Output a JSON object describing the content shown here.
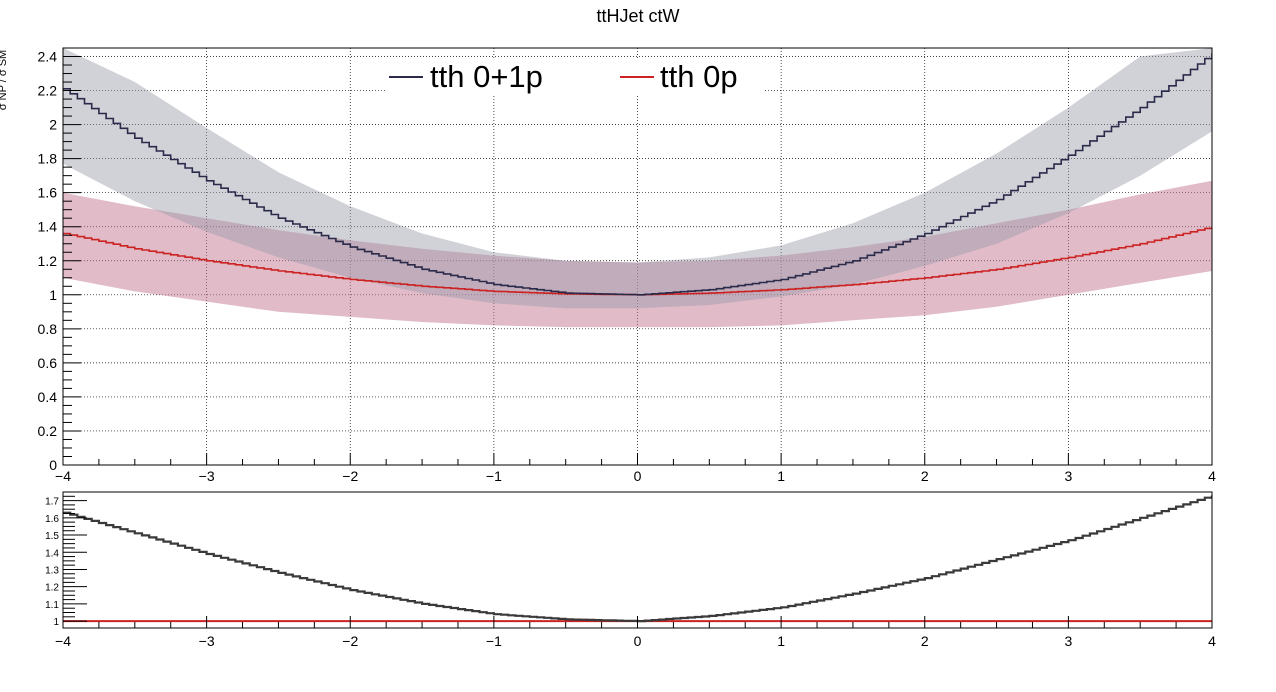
{
  "chart_data": [
    {
      "type": "line",
      "panel": "main",
      "title": "ttHJet ctW",
      "ylabel": "σ NP / σ SM",
      "xlabel": "",
      "xlim": [
        -4,
        4
      ],
      "ylim": [
        0,
        2.45
      ],
      "grid": true,
      "legend_placement": "top-center",
      "x_ticks": [
        "−4",
        "−3",
        "−2",
        "−1",
        "0",
        "1",
        "2",
        "3",
        "4"
      ],
      "y_ticks": [
        "0",
        "0.2",
        "0.4",
        "0.6",
        "0.8",
        "1",
        "1.2",
        "1.4",
        "1.6",
        "1.8",
        "2",
        "2.2",
        "2.4"
      ],
      "series": [
        {
          "name": "tth 0+1p",
          "color": "#2a2a4a",
          "band_color": "#9a9aa8",
          "x": [
            -4,
            -3.5,
            -3,
            -2.5,
            -2,
            -1.5,
            -1,
            -0.5,
            0,
            0.5,
            1,
            1.5,
            2,
            2.5,
            3,
            3.5,
            4
          ],
          "values": [
            2.21,
            1.92,
            1.67,
            1.45,
            1.28,
            1.15,
            1.06,
            1.01,
            1.0,
            1.03,
            1.09,
            1.2,
            1.36,
            1.56,
            1.82,
            2.1,
            2.42
          ],
          "band_low": [
            1.77,
            1.55,
            1.37,
            1.22,
            1.1,
            1.01,
            0.95,
            0.92,
            0.92,
            0.94,
            0.99,
            1.06,
            1.17,
            1.3,
            1.48,
            1.7,
            1.96
          ],
          "band_high": [
            2.45,
            2.25,
            1.98,
            1.72,
            1.52,
            1.36,
            1.25,
            1.2,
            1.19,
            1.22,
            1.29,
            1.42,
            1.6,
            1.83,
            2.1,
            2.4,
            2.45
          ]
        },
        {
          "name": "tth 0p",
          "color": "#cc2222",
          "band_color": "#c47a92",
          "x": [
            -4,
            -3.5,
            -3,
            -2.5,
            -2,
            -1.5,
            -1,
            -0.5,
            0,
            0.5,
            1,
            1.5,
            2,
            2.5,
            3,
            3.5,
            4
          ],
          "values": [
            1.36,
            1.27,
            1.2,
            1.14,
            1.09,
            1.05,
            1.02,
            1.005,
            1.0,
            1.01,
            1.03,
            1.06,
            1.1,
            1.15,
            1.22,
            1.3,
            1.4
          ],
          "band_low": [
            1.1,
            1.02,
            0.96,
            0.9,
            0.87,
            0.84,
            0.82,
            0.81,
            0.81,
            0.81,
            0.82,
            0.85,
            0.88,
            0.93,
            1.0,
            1.07,
            1.14
          ],
          "band_high": [
            1.6,
            1.52,
            1.45,
            1.38,
            1.32,
            1.27,
            1.23,
            1.2,
            1.19,
            1.2,
            1.23,
            1.28,
            1.34,
            1.42,
            1.5,
            1.59,
            1.67
          ]
        }
      ]
    },
    {
      "type": "line",
      "panel": "ratio",
      "xlim": [
        -4,
        4
      ],
      "ylim": [
        0.96,
        1.75
      ],
      "grid": false,
      "x_ticks": [
        "−4",
        "−3",
        "−2",
        "−1",
        "0",
        "1",
        "2",
        "3",
        "4"
      ],
      "y_ticks": [
        "1",
        "1.1",
        "1.2",
        "1.3",
        "1.4",
        "1.5",
        "1.6",
        "1.7"
      ],
      "series": [
        {
          "name": "tth 0+1p",
          "color": "#3a3a3a",
          "x": [
            -4,
            -3.5,
            -3,
            -2.5,
            -2,
            -1.5,
            -1,
            -0.5,
            0,
            0.5,
            1,
            1.5,
            2,
            2.5,
            3,
            3.5,
            4
          ],
          "values": [
            1.63,
            1.51,
            1.39,
            1.28,
            1.18,
            1.1,
            1.04,
            1.01,
            1.0,
            1.03,
            1.08,
            1.16,
            1.25,
            1.36,
            1.47,
            1.6,
            1.73
          ]
        },
        {
          "name": "tth 0p",
          "color": "#cc2222",
          "x": [
            -4,
            4
          ],
          "values": [
            1.0,
            1.0
          ]
        }
      ]
    }
  ]
}
